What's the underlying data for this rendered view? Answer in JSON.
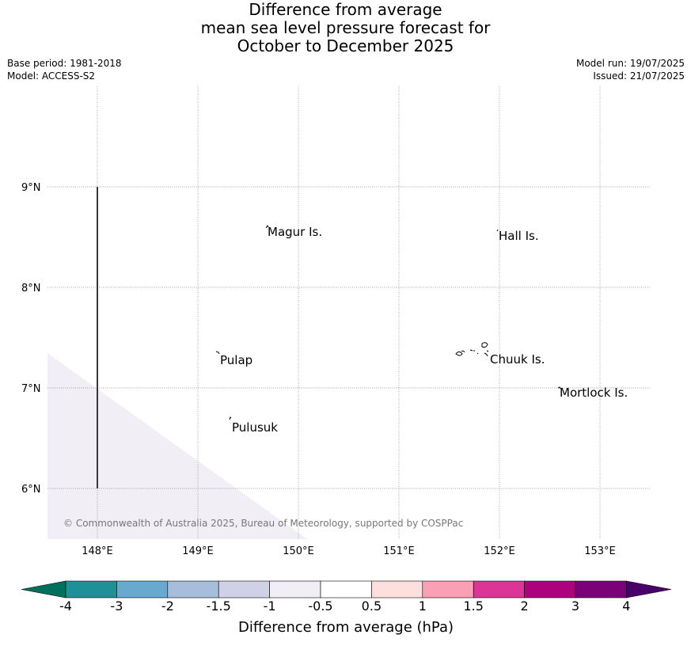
{
  "title": {
    "line1": "Difference from average",
    "line2": "mean sea level pressure forecast for",
    "line3": "October to December 2025"
  },
  "meta": {
    "base_period": "Base period: 1981-2018",
    "model": "Model: ACCESS-S2",
    "model_run": "Model run: 19/07/2025",
    "issued": "Issued: 21/07/2025"
  },
  "map": {
    "lon_ticks": [
      "148°E",
      "149°E",
      "150°E",
      "151°E",
      "152°E",
      "153°E"
    ],
    "lat_ticks": [
      "9°N",
      "8°N",
      "7°N",
      "6°N"
    ],
    "places": [
      {
        "name": "Magur Is.",
        "lon": 149.67,
        "lat": 8.57
      },
      {
        "name": "Hall Is.",
        "lon": 152.0,
        "lat": 8.53
      },
      {
        "name": "Pulap",
        "lon": 149.18,
        "lat": 7.27
      },
      {
        "name": "Chuuk Is.",
        "lon": 151.85,
        "lat": 7.28
      },
      {
        "name": "Mortlock Is.",
        "lon": 152.6,
        "lat": 6.95
      },
      {
        "name": "Pulusuk",
        "lon": 149.3,
        "lat": 6.6
      }
    ],
    "shaded_region_category": "-1 to -0.5",
    "shaded_color": "#f1eef6",
    "copyright": "© Commonwealth of Australia 2025, Bureau of Meteorology, supported by COSPPac"
  },
  "colorbar": {
    "label": "Difference from average (hPa)",
    "ticks": [
      "-4",
      "-3",
      "-2",
      "-1.5",
      "-1",
      "-0.5",
      "0.5",
      "1",
      "1.5",
      "2",
      "3",
      "4"
    ],
    "under_color": "#00705e",
    "over_color": "#4a006a",
    "colors": [
      "#1f8f98",
      "#67a9cf",
      "#a6bddb",
      "#d0d1e6",
      "#f1eef6",
      "#ffffff",
      "#fde0dd",
      "#fa9fb5",
      "#dd3497",
      "#ae017e",
      "#7a0177"
    ]
  }
}
